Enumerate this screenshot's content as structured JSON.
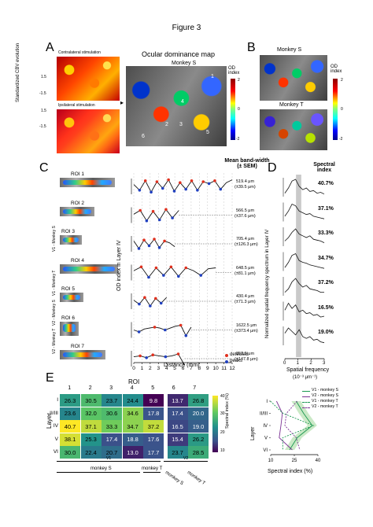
{
  "figure_title": "Figure 3",
  "panels": {
    "A": {
      "letter": "A",
      "contra_label": "Contralateral stimulation",
      "ipsi_label": "Ipsilateral stimulation",
      "cbv_label": "Standardized CBV evolution",
      "cbar_top": "1.5",
      "cbar_bottom": "-1.5",
      "cbar_top2": "1.5",
      "cbar_bottom2": "-1.5",
      "od_map_title": "Ocular dominance map",
      "monkey": "Monkey S",
      "od_label": "OD index",
      "od_ticks": [
        "2",
        "0",
        "-2"
      ],
      "roi_numbers": [
        "1",
        "2",
        "3",
        "4",
        "5",
        "6"
      ]
    },
    "B": {
      "letter": "B",
      "monkey_s": "Monkey S",
      "monkey_t": "Monkey T",
      "od_label": "OD index",
      "od_ticks": [
        "2",
        "0",
        "-2"
      ]
    },
    "C": {
      "letter": "C",
      "header": "Mean band-width (± SEM)",
      "rois": [
        {
          "label": "ROI 1",
          "group": "",
          "bw": "519.4 μm",
          "sem": "(±39.5 μm)"
        },
        {
          "label": "ROI 2",
          "group": "",
          "bw": "566.5 μm",
          "sem": "(±37.6 μm)"
        },
        {
          "label": "ROI 3",
          "group": "",
          "bw": "705.4 μm",
          "sem": "(±126.3 μm)"
        },
        {
          "label": "ROI 4",
          "group": "",
          "bw": "648.5 μm",
          "sem": "(±81.1 μm)"
        },
        {
          "label": "ROI 5",
          "group": "",
          "bw": "430.4 μm",
          "sem": "(±71.3 μm)"
        },
        {
          "label": "ROI 6",
          "group": "",
          "bw": "1622.5 μm",
          "sem": "(±373.4 μm)"
        },
        {
          "label": "ROI 7",
          "group": "",
          "bw": "852.5 μm",
          "sem": "(±147.8 μm)"
        }
      ],
      "group_labels": [
        "V1 - Monkey S",
        "V1 - Monkey T",
        "V2 - Monkey S",
        "V2 - Monkey T"
      ],
      "ylabel": "OD index in Layer IV",
      "xlabel": "Distance (mm)",
      "xticks": [
        "0",
        "1",
        "2",
        "3",
        "4",
        "5",
        "6",
        "7",
        "8",
        "9",
        "10",
        "11",
        "12"
      ],
      "legend_title": "detected peaks",
      "legend_detected": "detected",
      "legend_peaks": "peaks"
    },
    "D": {
      "letter": "D",
      "header": "Spectral index",
      "values": [
        "40.7%",
        "37.1%",
        "33.3%",
        "34.7%",
        "37.2%",
        "16.5%",
        "19.0%"
      ],
      "ylabel": "Normalized spatial frequency spectrum in Layer IV",
      "xlabel": "Spatial frequency",
      "xunit": "(10⁻³ μm⁻¹)",
      "xticks": [
        "0",
        "1",
        "2",
        "3"
      ]
    },
    "E": {
      "letter": "E",
      "roi_header": "ROI",
      "col_labels": [
        "1",
        "2",
        "3",
        "4",
        "5",
        "6",
        "7"
      ],
      "row_labels": [
        "I",
        "II/III",
        "IV",
        "V",
        "VI"
      ],
      "layer_label": "Layer",
      "cbar_label": "Spectral index (%)",
      "cbar_ticks": [
        "40",
        "30",
        "20",
        "10"
      ],
      "v1_label": "V1",
      "v2_label": "V2",
      "group_monkey_s": "monkey S",
      "group_monkey_t": "monkey T",
      "group_monkey_s2": "monkey S",
      "group_monkey_t2": "monkey T",
      "legend": [
        "V1 - monkey S",
        "V2 - monkey S",
        "V1 - monkey T",
        "V2 - monkey T"
      ],
      "line_xlabel": "Spectral index (%)",
      "line_xticks": [
        "10",
        "25",
        "40"
      ],
      "line_ylabel": "Layer"
    }
  },
  "chart_data": [
    {
      "type": "heatmap",
      "title": "",
      "xlabel": "ROI",
      "ylabel": "Layer",
      "categories": [
        "1",
        "2",
        "3",
        "4",
        "5",
        "6",
        "7"
      ],
      "rows": [
        "I",
        "II/III",
        "IV",
        "V",
        "VI"
      ],
      "values": [
        [
          26.3,
          30.5,
          23.7,
          24.4,
          9.8,
          13.7,
          26.8
        ],
        [
          23.6,
          32.0,
          30.6,
          34.6,
          17.8,
          17.4,
          20.0
        ],
        [
          40.7,
          37.1,
          33.3,
          34.7,
          37.2,
          16.5,
          19.0
        ],
        [
          38.1,
          25.3,
          17.4,
          18.8,
          17.6,
          15.4,
          26.2
        ],
        [
          30.0,
          22.4,
          20.7,
          13.0,
          17.7,
          23.7,
          28.5
        ]
      ],
      "color_range": [
        10,
        40
      ]
    },
    {
      "type": "line",
      "title": "",
      "xlabel": "Spectral index (%)",
      "ylabel": "Layer",
      "xlim": [
        10,
        40
      ],
      "layers": [
        "I",
        "II/III",
        "IV",
        "V",
        "VI"
      ],
      "series": [
        {
          "name": "V1 - monkey S",
          "values": [
            26.2,
            30.9,
            36.4,
            26.8,
            22.0
          ],
          "color": "#1a9850",
          "style": "solid"
        },
        {
          "name": "V2 - monkey S",
          "values": [
            13.7,
            17.4,
            16.5,
            15.4,
            23.7
          ],
          "color": "#7b3294",
          "style": "solid"
        },
        {
          "name": "V1 - monkey T",
          "values": [
            9.8,
            17.8,
            37.2,
            17.6,
            17.7
          ],
          "color": "#1a9850",
          "style": "dashed"
        },
        {
          "name": "V2 - monkey T",
          "values": [
            26.8,
            20.0,
            19.0,
            26.2,
            28.5
          ],
          "color": "#7b3294",
          "style": "dashed"
        }
      ]
    },
    {
      "type": "line",
      "title": "",
      "xlabel": "Distance (mm)",
      "ylabel": "OD index in Layer IV",
      "xlim": [
        0,
        12
      ],
      "series": [
        {
          "name": "ROI 1",
          "values": [
            0.2,
            -0.4,
            0.6,
            -0.6,
            0.5,
            -0.2,
            0.7,
            -0.5,
            0.4,
            -0.3,
            0.6,
            -0.4,
            0.5,
            0.3,
            0.6,
            -0.3,
            0.4,
            0.7
          ]
        },
        {
          "name": "ROI 2",
          "values": [
            0.1,
            0.5,
            -0.6,
            0.4,
            -0.5,
            0.6,
            -0.3,
            0.5
          ]
        },
        {
          "name": "ROI 3",
          "values": [
            0.3,
            -0.5,
            0.4,
            -0.2,
            0.5,
            -0.4,
            0.3,
            0.1,
            -0.3
          ]
        },
        {
          "name": "ROI 4",
          "values": [
            0.2,
            0.6,
            -0.5,
            0.5,
            -0.3,
            0.6,
            -0.4,
            0.5,
            0.2,
            -0.3,
            0.4,
            0.5
          ]
        },
        {
          "name": "ROI 5",
          "values": [
            0.1,
            -0.3,
            0.4,
            -0.5,
            0.3,
            -0.2,
            0.4
          ]
        },
        {
          "name": "ROI 6",
          "values": [
            0.0,
            -0.2,
            0.1,
            0.2,
            0.3,
            0.2,
            0.0,
            0.2,
            0.4,
            0.5,
            -0.6,
            0.3
          ]
        },
        {
          "name": "ROI 7",
          "values": [
            0.2,
            0.3,
            0.1,
            0.4,
            0.3,
            0.2,
            0.3,
            0.5,
            -0.7
          ]
        }
      ]
    },
    {
      "type": "line",
      "title": "",
      "xlabel": "Spatial frequency",
      "ylabel": "Normalized spatial frequency spectrum in Layer IV",
      "xlim": [
        0,
        3
      ],
      "series": [
        {
          "name": "ROI 1",
          "values": [
            0.2,
            0.5,
            0.9,
            1.0,
            0.6,
            0.4,
            0.5,
            0.3,
            0.35,
            0.2,
            0.25,
            0.15
          ]
        },
        {
          "name": "ROI 2",
          "values": [
            0.3,
            0.6,
            1.0,
            0.9,
            0.6,
            0.5,
            0.4,
            0.45,
            0.3,
            0.25,
            0.2,
            0.15
          ]
        },
        {
          "name": "ROI 3",
          "values": [
            0.3,
            0.5,
            0.8,
            1.0,
            0.7,
            0.6,
            0.5,
            0.6,
            0.4,
            0.35,
            0.3,
            0.2
          ]
        },
        {
          "name": "ROI 4",
          "values": [
            0.2,
            0.5,
            0.9,
            1.0,
            0.6,
            0.5,
            0.45,
            0.35,
            0.3,
            0.25,
            0.2,
            0.15
          ]
        },
        {
          "name": "ROI 5",
          "values": [
            0.2,
            0.4,
            0.8,
            1.0,
            0.7,
            0.5,
            0.6,
            0.4,
            0.35,
            0.3,
            0.2,
            0.2
          ]
        },
        {
          "name": "ROI 6",
          "values": [
            0.6,
            1.0,
            0.7,
            0.9,
            0.5,
            0.6,
            0.4,
            0.45,
            0.3,
            0.35,
            0.2,
            0.25
          ]
        },
        {
          "name": "ROI 7",
          "values": [
            0.7,
            1.0,
            0.8,
            0.6,
            0.9,
            0.5,
            0.4,
            0.5,
            0.3,
            0.35,
            0.2,
            0.15
          ]
        }
      ]
    }
  ]
}
